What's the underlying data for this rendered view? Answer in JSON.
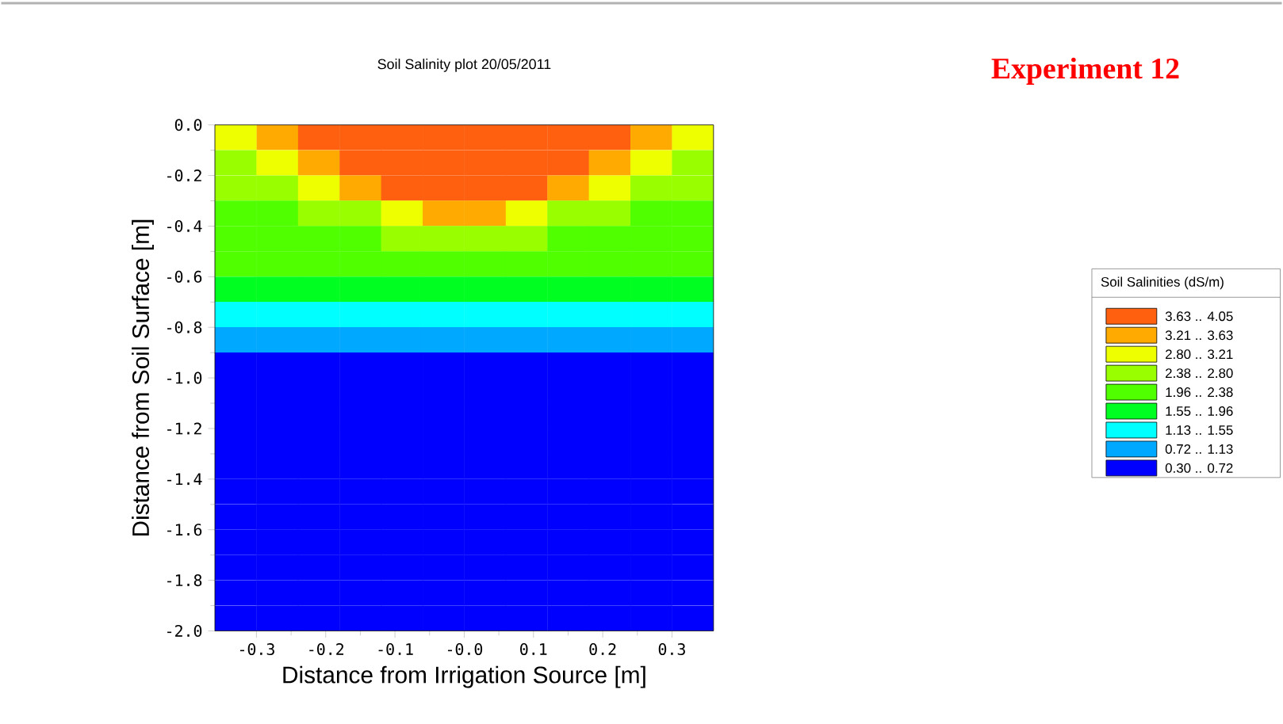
{
  "chart_data": {
    "type": "heatmap",
    "title": "Soil Salinity plot 20/05/2011",
    "xlabel": "Distance from Irrigation Source [m]",
    "ylabel": "Distance from Soil Surface [m]",
    "clabel": "Soil Salinities (dS/m)",
    "annotations": [
      "Experiment 12"
    ],
    "xlim": [
      -0.36,
      0.36
    ],
    "ylim": [
      -2.0,
      0.0
    ],
    "xticks": [
      -0.3,
      -0.2,
      -0.1,
      {
        "value": 0,
        "label": "-0.0"
      },
      0.1,
      0.2,
      0.3
    ],
    "yticks": [
      {
        "value": 0,
        "label": "0.0"
      },
      -0.2,
      -0.4,
      -0.6,
      -0.8,
      {
        "value": -1,
        "label": "-1.0"
      },
      -1.2,
      -1.4,
      -1.6,
      -1.8,
      {
        "value": -2,
        "label": "-2.0"
      }
    ],
    "clim": [
      0.3,
      4.05
    ],
    "cticks": [
      {
        "value": 0.51,
        "label": "0.30 .. 0.72"
      },
      {
        "value": 0.925,
        "label": "0.72 .. 1.13"
      },
      {
        "value": 1.34,
        "label": "1.13 .. 1.55"
      },
      {
        "value": 1.755,
        "label": "1.55 .. 1.96"
      },
      {
        "value": 2.17,
        "label": "1.96 .. 2.38"
      },
      {
        "value": 2.59,
        "label": "2.38 .. 2.80"
      },
      {
        "value": 3.005,
        "label": "2.80 .. 3.21"
      },
      {
        "value": 3.42,
        "label": "3.21 .. 3.63"
      },
      {
        "value": 3.84,
        "label": "3.63 .. 4.05"
      }
    ],
    "colors": [
      "#0000ff",
      "#00a8ff",
      "#00ffff",
      "#00ff20",
      "#50ff00",
      "#99ff00",
      "#eeff00",
      "#ffaa00",
      "#ff6010"
    ],
    "cells": [
      [
        3.005,
        3.42,
        3.84,
        3.84,
        3.84,
        3.84,
        3.84,
        3.84,
        3.84,
        3.84,
        3.42,
        3.005
      ],
      [
        2.59,
        3.005,
        3.42,
        3.84,
        3.84,
        3.84,
        3.84,
        3.84,
        3.84,
        3.42,
        3.005,
        2.59
      ],
      [
        2.59,
        2.59,
        3.005,
        3.42,
        3.84,
        3.84,
        3.84,
        3.84,
        3.42,
        3.005,
        2.59,
        2.59
      ],
      [
        2.17,
        2.17,
        2.59,
        2.59,
        3.005,
        3.42,
        3.42,
        3.005,
        2.59,
        2.59,
        2.17,
        2.17
      ],
      [
        2.17,
        2.17,
        2.17,
        2.17,
        2.59,
        2.59,
        2.59,
        2.59,
        2.17,
        2.17,
        2.17,
        2.17
      ],
      [
        2.17,
        2.17,
        2.17,
        2.17,
        2.17,
        2.17,
        2.17,
        2.17,
        2.17,
        2.17,
        2.17,
        2.17
      ],
      [
        1.755,
        1.755,
        1.755,
        1.755,
        1.755,
        1.755,
        1.755,
        1.755,
        1.755,
        1.755,
        1.755,
        1.755
      ],
      [
        1.34,
        1.34,
        1.34,
        1.34,
        1.34,
        1.34,
        1.34,
        1.34,
        1.34,
        1.34,
        1.34,
        1.34
      ],
      [
        0.925,
        0.925,
        0.925,
        0.925,
        0.925,
        0.925,
        0.925,
        0.925,
        0.925,
        0.925,
        0.925,
        0.925
      ],
      [
        0.51,
        0.51,
        0.51,
        0.51,
        0.51,
        0.51,
        0.51,
        0.51,
        0.51,
        0.51,
        0.51,
        0.51
      ],
      [
        0.51,
        0.51,
        0.51,
        0.51,
        0.51,
        0.51,
        0.51,
        0.51,
        0.51,
        0.51,
        0.51,
        0.51
      ],
      [
        0.51,
        0.51,
        0.51,
        0.51,
        0.51,
        0.51,
        0.51,
        0.51,
        0.51,
        0.51,
        0.51,
        0.51
      ],
      [
        0.51,
        0.51,
        0.51,
        0.51,
        0.51,
        0.51,
        0.51,
        0.51,
        0.51,
        0.51,
        0.51,
        0.51
      ],
      [
        0.51,
        0.51,
        0.51,
        0.51,
        0.51,
        0.51,
        0.51,
        0.51,
        0.51,
        0.51,
        0.51,
        0.51
      ],
      [
        0.51,
        0.51,
        0.51,
        0.51,
        0.51,
        0.51,
        0.51,
        0.51,
        0.51,
        0.51,
        0.51,
        0.51
      ],
      [
        0.51,
        0.51,
        0.51,
        0.51,
        0.51,
        0.51,
        0.51,
        0.51,
        0.51,
        0.51,
        0.51,
        0.51
      ],
      [
        0.51,
        0.51,
        0.51,
        0.51,
        0.51,
        0.51,
        0.51,
        0.51,
        0.51,
        0.51,
        0.51,
        0.51
      ],
      [
        0.51,
        0.51,
        0.51,
        0.51,
        0.51,
        0.51,
        0.51,
        0.51,
        0.51,
        0.51,
        0.51,
        0.51
      ],
      [
        0.51,
        0.51,
        0.51,
        0.51,
        0.51,
        0.51,
        0.51,
        0.51,
        0.51,
        0.51,
        0.51,
        0.51
      ],
      [
        0.51,
        0.51,
        0.51,
        0.51,
        0.51,
        0.51,
        0.51,
        0.51,
        0.51,
        0.51,
        0.51,
        0.51
      ]
    ]
  }
}
